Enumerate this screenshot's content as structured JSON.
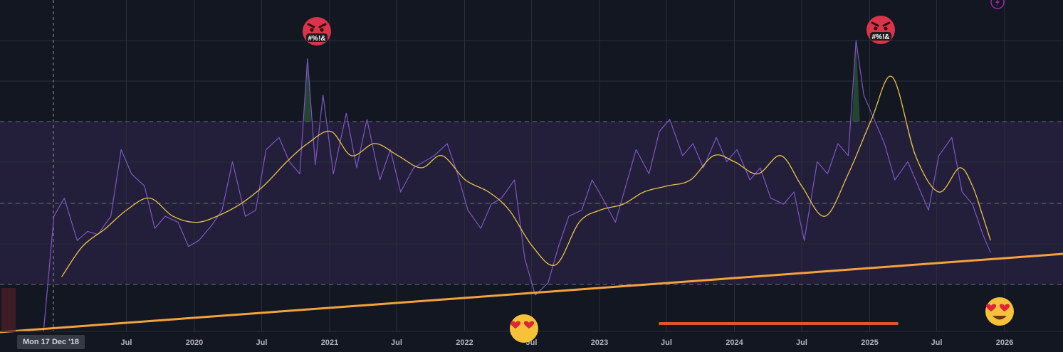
{
  "crosshair": {
    "date_label": "Mon 17 Dec '18"
  },
  "emoji_labels": {
    "angry_text": "#%!&"
  },
  "colors": {
    "background": "#131722",
    "band_fill": "#231e3a",
    "grid": "#2a2e39",
    "raw_line": "#7e57c2",
    "ma_line": "#e8c547",
    "trend_line": "#f6a23a",
    "red_marker": "#e0552b",
    "peak_fill": "#2e5a3a"
  },
  "icons": [
    "lightning-icon",
    "angry-face-icon",
    "heart-eyes-face-icon"
  ],
  "chart_data": {
    "type": "line",
    "x_tick_labels": [
      "Jul",
      "2020",
      "Jul",
      "2021",
      "Jul",
      "2022",
      "Jul",
      "2023",
      "Jul",
      "2024",
      "Jul",
      "2025",
      "Jul",
      "2026"
    ],
    "x_range": [
      "2018-11-15",
      "2026-05-01"
    ],
    "band": {
      "upper_level": "high threshold",
      "lower_level": "low threshold"
    },
    "series": [
      {
        "role": "weekly value",
        "x": [
          "2018-11-19",
          "2018-12-17",
          "2019-01-14",
          "2019-02-18",
          "2019-03-18",
          "2019-04-15",
          "2019-05-20",
          "2019-06-17",
          "2019-07-15",
          "2019-08-19",
          "2019-09-16",
          "2019-10-14",
          "2019-11-18",
          "2019-12-16",
          "2020-01-13",
          "2020-02-17",
          "2020-03-16",
          "2020-04-13",
          "2020-05-18",
          "2020-06-15",
          "2020-07-13",
          "2020-08-17",
          "2020-09-14",
          "2020-10-12",
          "2020-11-02",
          "2020-11-23",
          "2020-12-14",
          "2021-01-11",
          "2021-02-15",
          "2021-03-15",
          "2021-04-12",
          "2021-05-17",
          "2021-06-14",
          "2021-07-12",
          "2021-08-16",
          "2021-09-13",
          "2021-10-11",
          "2021-11-15",
          "2021-12-13",
          "2022-01-10",
          "2022-02-14",
          "2022-03-14",
          "2022-04-11",
          "2022-05-16",
          "2022-06-13",
          "2022-07-11",
          "2022-08-15",
          "2022-09-12",
          "2022-10-10",
          "2022-11-14",
          "2022-12-12",
          "2023-01-09",
          "2023-02-13",
          "2023-03-13",
          "2023-04-10",
          "2023-05-15",
          "2023-06-12",
          "2023-07-10",
          "2023-08-14",
          "2023-09-11",
          "2023-10-09",
          "2023-11-13",
          "2023-12-11",
          "2024-01-08",
          "2024-02-12",
          "2024-03-11",
          "2024-04-08",
          "2024-05-13",
          "2024-06-10",
          "2024-07-08",
          "2024-08-12",
          "2024-09-09",
          "2024-10-07",
          "2024-11-04",
          "2024-11-25",
          "2024-12-16",
          "2025-01-13",
          "2025-02-10",
          "2025-03-10",
          "2025-04-14",
          "2025-05-12",
          "2025-06-09",
          "2025-07-07",
          "2025-08-11",
          "2025-09-08",
          "2025-10-06",
          "2025-11-03",
          "2025-11-24"
        ],
        "values": [
          0,
          38,
          44,
          30,
          33,
          32,
          38,
          60,
          52,
          48,
          34,
          38,
          36,
          28,
          30,
          35,
          40,
          56,
          38,
          40,
          60,
          64,
          56,
          52,
          90,
          55,
          78,
          52,
          72,
          54,
          70,
          50,
          60,
          46,
          54,
          56,
          58,
          62,
          52,
          40,
          34,
          42,
          44,
          50,
          24,
          12,
          16,
          28,
          38,
          40,
          50,
          44,
          36,
          48,
          60,
          52,
          66,
          70,
          58,
          62,
          54,
          64,
          56,
          60,
          50,
          54,
          44,
          42,
          46,
          30,
          56,
          52,
          62,
          58,
          96,
          78,
          70,
          62,
          50,
          56,
          48,
          40,
          58,
          64,
          46,
          42,
          32,
          26
        ]
      },
      {
        "role": "moving average",
        "x": [
          "2019-01-07",
          "2019-03-04",
          "2019-05-06",
          "2019-07-01",
          "2019-09-02",
          "2019-11-04",
          "2020-01-06",
          "2020-03-02",
          "2020-05-04",
          "2020-07-06",
          "2020-09-07",
          "2020-11-02",
          "2021-01-04",
          "2021-03-01",
          "2021-05-03",
          "2021-07-05",
          "2021-09-06",
          "2021-11-01",
          "2022-01-03",
          "2022-03-07",
          "2022-05-02",
          "2022-07-04",
          "2022-09-05",
          "2022-11-07",
          "2023-01-02",
          "2023-03-06",
          "2023-05-01",
          "2023-07-03",
          "2023-09-04",
          "2023-11-06",
          "2024-01-01",
          "2024-03-04",
          "2024-05-06",
          "2024-07-01",
          "2024-09-02",
          "2024-11-04",
          "2025-01-06",
          "2025-03-03",
          "2025-05-05",
          "2025-07-07",
          "2025-09-01",
          "2025-10-06",
          "2025-11-03",
          "2025-11-24"
        ],
        "values": [
          18,
          28,
          34,
          40,
          44,
          38,
          36,
          38,
          42,
          48,
          56,
          62,
          66,
          58,
          62,
          58,
          54,
          58,
          50,
          46,
          40,
          28,
          22,
          36,
          40,
          42,
          46,
          48,
          50,
          58,
          56,
          52,
          58,
          48,
          38,
          52,
          70,
          84,
          58,
          46,
          54,
          48,
          38,
          30
        ]
      }
    ]
  }
}
